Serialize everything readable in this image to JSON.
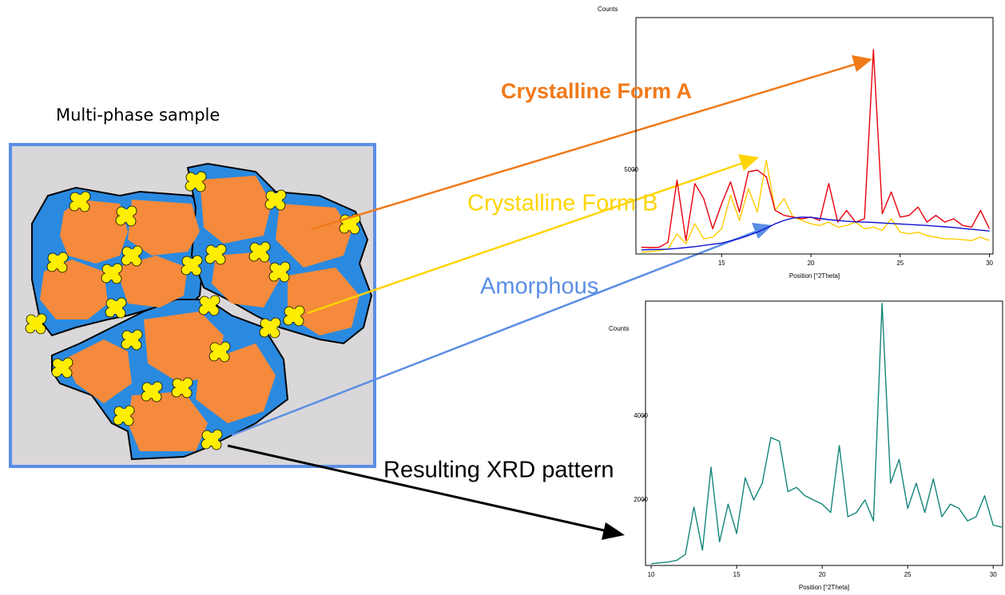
{
  "diagram": {
    "sample_label": "Multi-phase sample",
    "form_a_label": "Crystalline Form A",
    "form_b_label": "Crystalline Form B",
    "amorphous_label": "Amorphous",
    "result_label": "Resulting XRD pattern"
  },
  "chart_data": [
    {
      "type": "line",
      "y_label": "Counts",
      "x_label": "Position [°2Theta]",
      "x": [
        10.5,
        11,
        11.5,
        12,
        12.5,
        13,
        13.5,
        14,
        14.5,
        15,
        15.5,
        16,
        16.5,
        17,
        17.5,
        18,
        18.5,
        19,
        19.5,
        20,
        20.5,
        21,
        21.5,
        22,
        22.5,
        23,
        23.5,
        24,
        24.5,
        25,
        25.5,
        26,
        26.5,
        27,
        27.5,
        28,
        28.5,
        29,
        29.5,
        30
      ],
      "xlim": [
        10.2,
        30.2
      ],
      "xticks": [
        15,
        20,
        25,
        30
      ],
      "ylim": [
        0,
        14100
      ],
      "yticks": [
        5000
      ],
      "series": [
        {
          "color": "#ffcc00",
          "values": [
            100,
            150,
            200,
            300,
            1200,
            600,
            1800,
            900,
            1000,
            1500,
            3500,
            2000,
            3900,
            2500,
            5600,
            2600,
            3300,
            2200,
            2000,
            1800,
            1700,
            1900,
            1600,
            1700,
            1900,
            1500,
            1600,
            1400,
            2100,
            1300,
            1200,
            1300,
            1100,
            1000,
            900,
            900,
            850,
            800,
            1000,
            800
          ]
        },
        {
          "color": "#e8000b",
          "values": [
            400,
            380,
            400,
            700,
            4400,
            800,
            4200,
            3300,
            1500,
            3000,
            4300,
            2500,
            4900,
            5000,
            4600,
            2600,
            2300,
            2200,
            2100,
            2200,
            2000,
            4200,
            1900,
            2600,
            1900,
            2100,
            12190,
            2400,
            3700,
            2200,
            2300,
            2800,
            1900,
            2300,
            1900,
            2100,
            1700,
            1600,
            2600,
            1500
          ]
        },
        {
          "color": "#1010d0",
          "values": [
            250,
            260,
            270,
            290,
            330,
            380,
            440,
            510,
            580,
            650,
            780,
            920,
            1100,
            1300,
            1550,
            1800,
            2000,
            2150,
            2200,
            2180,
            2120,
            2050,
            2000,
            1950,
            1920,
            1900,
            1880,
            1850,
            1820,
            1790,
            1760,
            1730,
            1700,
            1660,
            1620,
            1580,
            1520,
            1470,
            1420,
            1370
          ]
        }
      ]
    },
    {
      "type": "line",
      "y_label": "Counts",
      "x_label": "Position [°2Theta]",
      "x": [
        10,
        10.5,
        11,
        11.5,
        12,
        12.5,
        13,
        13.5,
        14,
        14.5,
        15,
        15.5,
        16,
        16.5,
        17,
        17.5,
        18,
        18.5,
        19,
        19.5,
        20,
        20.5,
        21,
        21.5,
        22,
        22.5,
        23,
        23.5,
        24,
        24.5,
        25,
        25.5,
        26,
        26.5,
        27,
        27.5,
        28,
        28.5,
        29,
        29.5,
        30,
        30.5
      ],
      "xlim": [
        9.67,
        30.55
      ],
      "xticks": [
        10,
        15,
        20,
        25,
        30
      ],
      "ylim": [
        438,
        6743
      ],
      "yticks": [
        2000,
        4000
      ],
      "series": [
        {
          "color": "#14857a",
          "values": [
            480,
            500,
            520,
            560,
            700,
            1830,
            800,
            2780,
            1000,
            1900,
            1200,
            2530,
            2000,
            2400,
            3490,
            3400,
            2200,
            2300,
            2100,
            2000,
            1900,
            1700,
            3300,
            1600,
            1700,
            2000,
            1500,
            6690,
            2400,
            2970,
            1800,
            2400,
            1700,
            2500,
            1600,
            1900,
            1800,
            1500,
            1600,
            2100,
            1400,
            1350
          ]
        }
      ]
    }
  ]
}
